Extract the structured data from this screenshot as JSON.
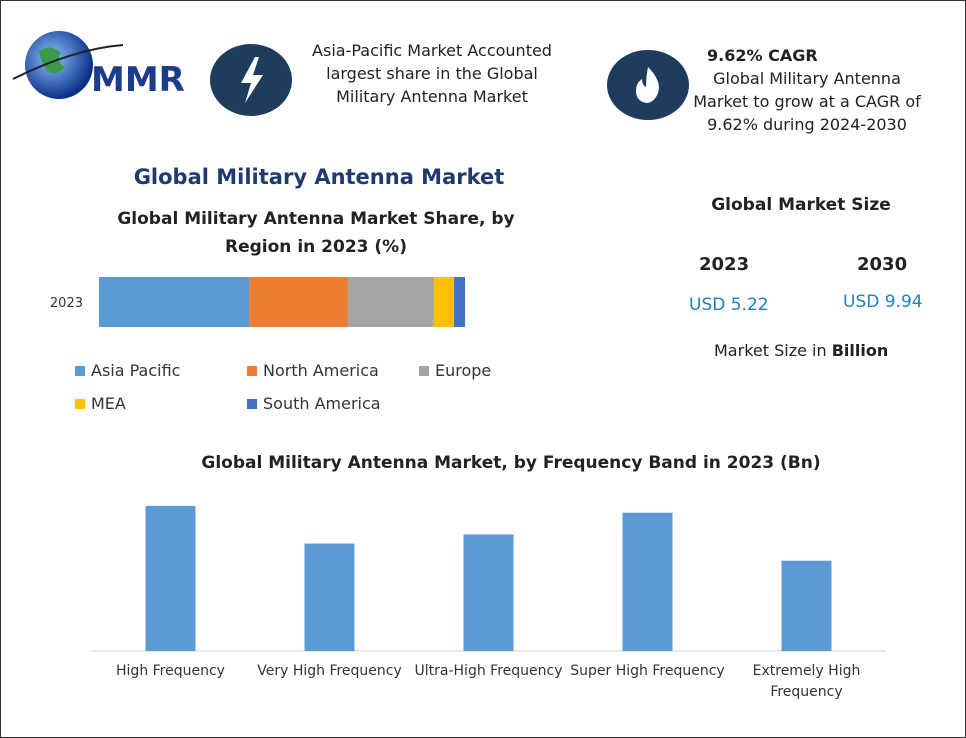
{
  "logo": "MMR",
  "highlights": {
    "share": "Asia-Pacific Market Accounted largest share in the Global Military Antenna Market",
    "cagr_title": "9.62% CAGR",
    "cagr_text": "Global Military Antenna Market to grow at a CAGR of 9.62% during 2024-2030"
  },
  "main_title": "Global Military Antenna Market",
  "market_size": {
    "title": "Global Market Size",
    "items": [
      {
        "year": "2023",
        "value": "USD 5.22"
      },
      {
        "year": "2030",
        "value": "USD 9.94"
      }
    ],
    "note": "Market Size in",
    "note_unit": "Billion"
  },
  "chart_data": [
    {
      "type": "bar",
      "orientation": "horizontal",
      "stacked": true,
      "title": "Global Military Antenna Market Share, by Region in 2023 (%)",
      "categories": [
        "2023"
      ],
      "series": [
        {
          "name": "Asia Pacific",
          "color": "#5b9bd5",
          "values": [
            41
          ]
        },
        {
          "name": "North America",
          "color": "#ed7d31",
          "values": [
            27
          ]
        },
        {
          "name": "Europe",
          "color": "#a5a5a5",
          "values": [
            23.5
          ]
        },
        {
          "name": "MEA",
          "color": "#ffc000",
          "values": [
            5.5
          ]
        },
        {
          "name": "South America",
          "color": "#4472c4",
          "values": [
            3
          ]
        }
      ],
      "xlim": [
        0,
        100
      ]
    },
    {
      "type": "bar",
      "orientation": "vertical",
      "title": "Global Military Antenna Market, by Frequency Band in 2023 (Bn)",
      "categories": [
        "High Frequency",
        "Very High Frequency",
        "Ultra-High Frequency",
        "Super High Frequency",
        "Extremely High Frequency"
      ],
      "values": [
        1.27,
        0.94,
        1.02,
        1.21,
        0.79
      ],
      "color": "#5b9bd5",
      "ylim": [
        0,
        1.4
      ]
    }
  ]
}
